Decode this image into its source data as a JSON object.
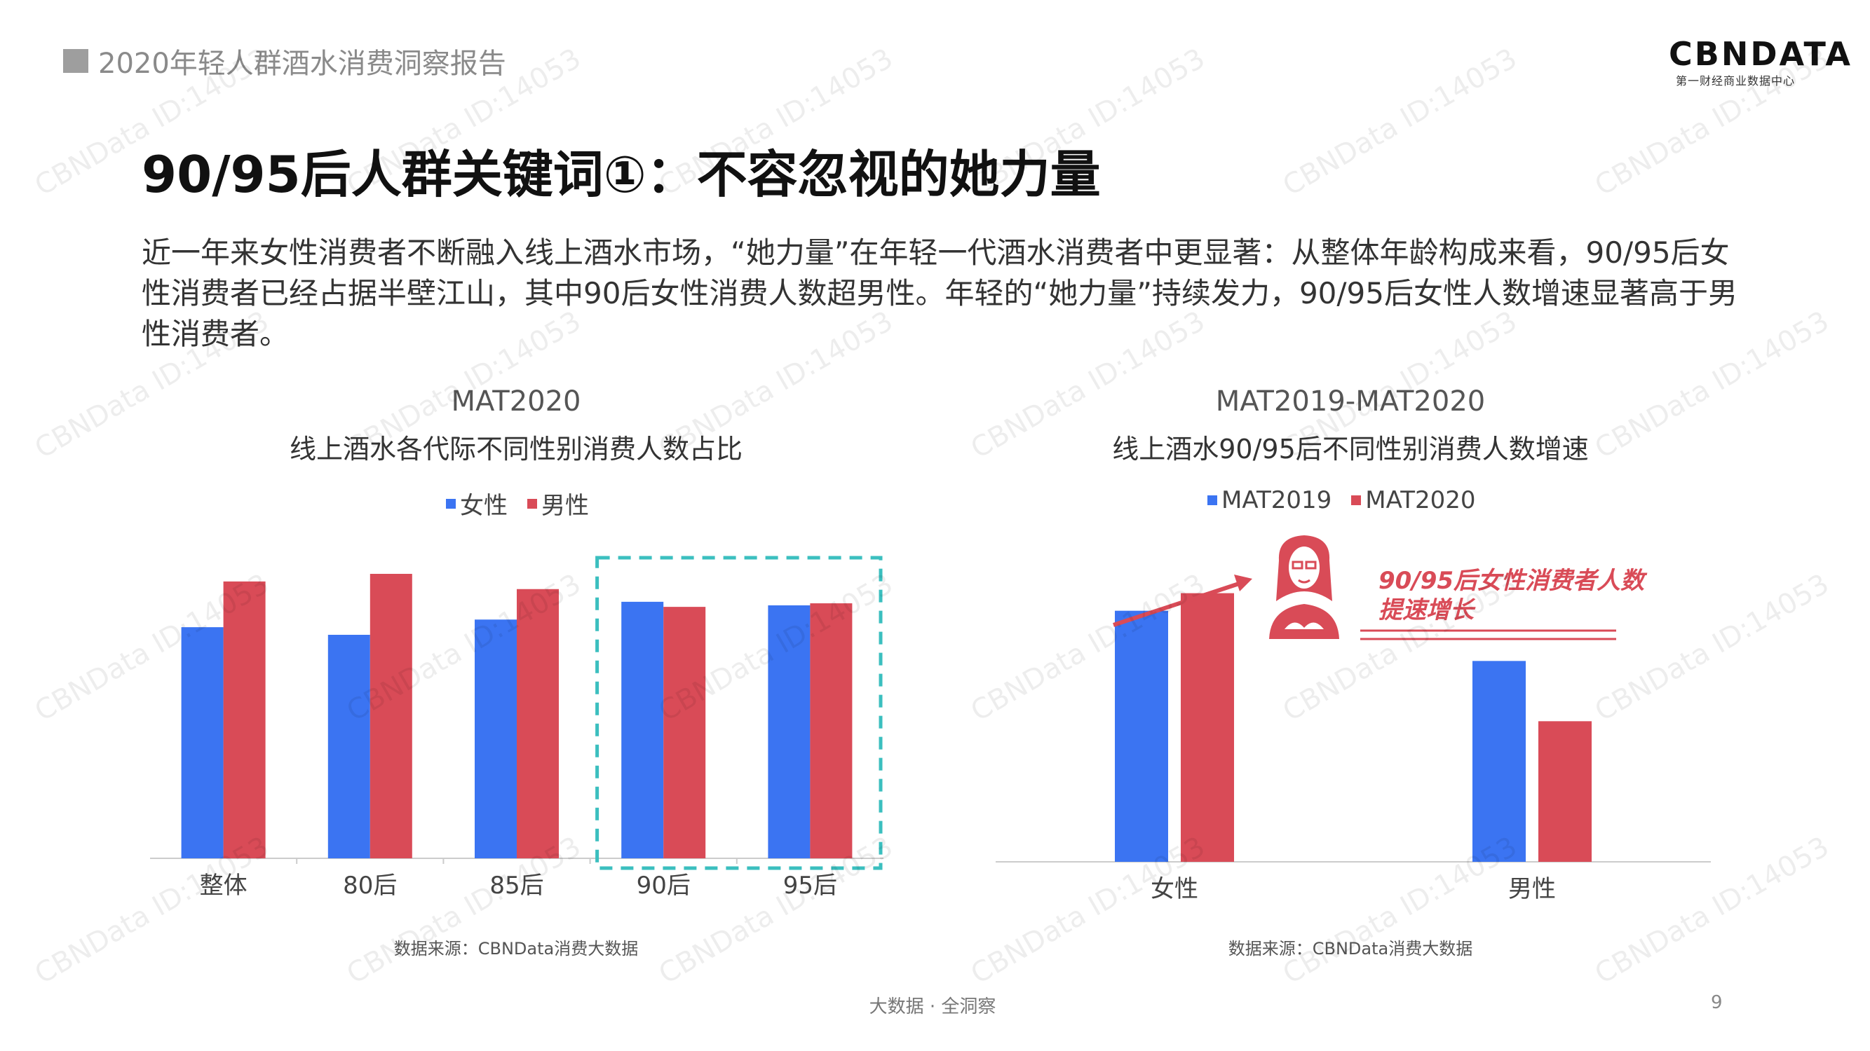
{
  "header": {
    "report_title": "2020年轻人群酒水消费洞察报告",
    "logo_main": "CBNDATA",
    "logo_sub": "第一财经商业数据中心"
  },
  "page_heading": "90/95后人群关键词①：不容忽视的她力量",
  "intro_text": "近一年来女性消费者不断融入线上酒水市场，“她力量”在年轻一代酒水消费者中更显著：从整体年龄构成来看，90/95后女性消费者已经占据半壁江山，其中90后女性消费人数超男性。年轻的“她力量”持续发力，90/95后女性人数增速显著高于男性消费者。",
  "colors": {
    "blue": "#3b74f2",
    "red": "#d94b57",
    "teal": "#3bbfbf",
    "axis": "#cccccc"
  },
  "chart_data": [
    {
      "type": "bar",
      "title": "MAT2020",
      "subtitle": "线上酒水各代际不同性别消费人数占比",
      "categories": [
        "整体",
        "80后",
        "85后",
        "90后",
        "95后"
      ],
      "series": [
        {
          "name": "女性",
          "color": "#3b74f2",
          "values": [
            0.455,
            0.44,
            0.47,
            0.505,
            0.498
          ]
        },
        {
          "name": "男性",
          "color": "#d94b57",
          "values": [
            0.545,
            0.56,
            0.53,
            0.495,
            0.502
          ]
        }
      ],
      "ylim": [
        0,
        0.6
      ],
      "highlight_categories": [
        "90后",
        "95后"
      ],
      "source": "数据来源：CBNData消费大数据"
    },
    {
      "type": "bar",
      "title": "MAT2019-MAT2020",
      "subtitle": "线上酒水90/95后不同性别消费人数增速",
      "categories": [
        "女性",
        "男性"
      ],
      "series": [
        {
          "name": "MAT2019",
          "color": "#3b74f2",
          "values": [
            1.0,
            0.8
          ]
        },
        {
          "name": "MAT2020",
          "color": "#d94b57",
          "values": [
            1.07,
            0.56
          ]
        }
      ],
      "ylim": [
        0,
        1.2
      ],
      "annotation": "90/95后女性消费者人数\n提速增长",
      "source": "数据来源：CBNData消费大数据"
    }
  ],
  "footer": {
    "center": "大数据 · 全洞察",
    "page_number": "9"
  },
  "watermark": "CBNData ID:14053"
}
